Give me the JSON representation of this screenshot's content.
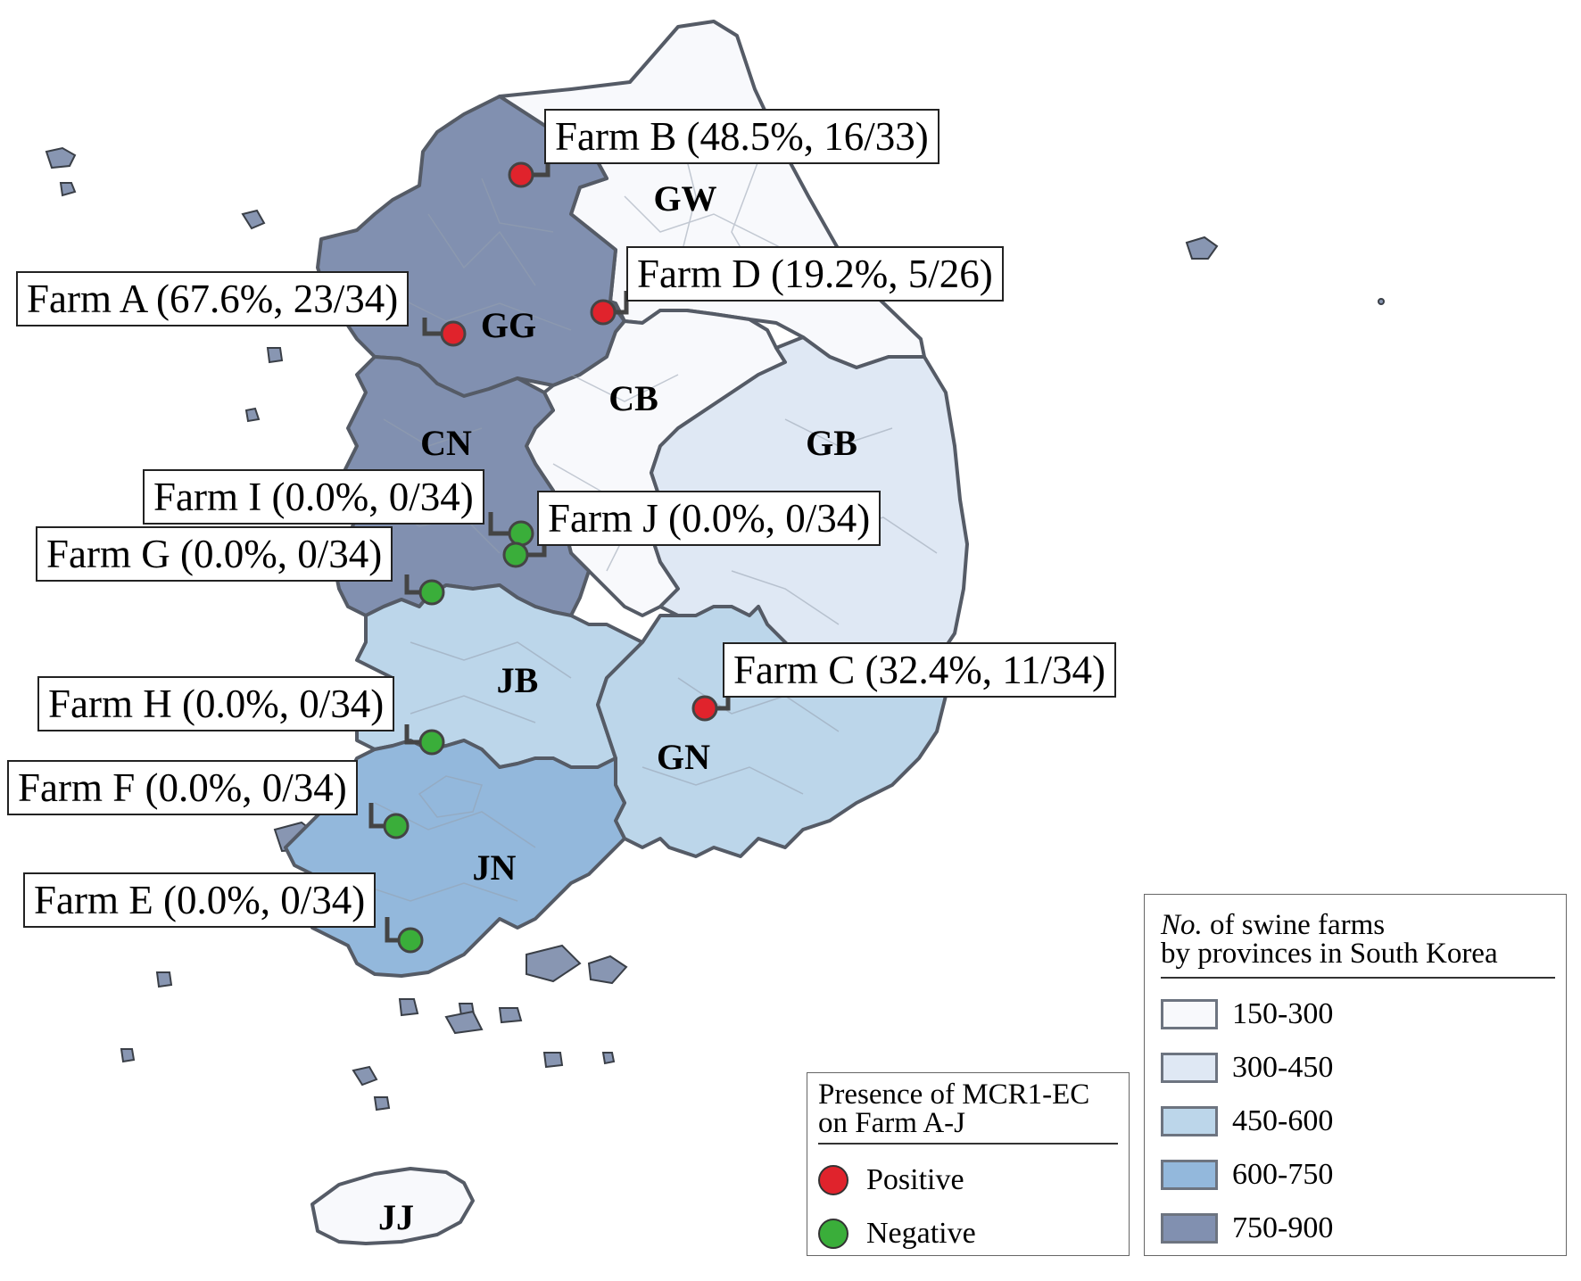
{
  "provinces": [
    {
      "code": "GW",
      "class": "150-300"
    },
    {
      "code": "GG",
      "class": "750-900"
    },
    {
      "code": "CB",
      "class": "150-300"
    },
    {
      "code": "CN",
      "class": "750-900"
    },
    {
      "code": "GB",
      "class": "300-450"
    },
    {
      "code": "JB",
      "class": "450-600"
    },
    {
      "code": "GN",
      "class": "450-600"
    },
    {
      "code": "JN",
      "class": "600-750"
    },
    {
      "code": "JJ",
      "class": "150-300"
    }
  ],
  "farms": [
    {
      "id": "B",
      "label": "Farm B (48.5%, 16/33)",
      "status": "positive"
    },
    {
      "id": "D",
      "label": "Farm D (19.2%, 5/26)",
      "status": "positive"
    },
    {
      "id": "A",
      "label": "Farm A (67.6%, 23/34)",
      "status": "positive"
    },
    {
      "id": "I",
      "label": "Farm I (0.0%, 0/34)",
      "status": "negative"
    },
    {
      "id": "J",
      "label": "Farm J (0.0%, 0/34)",
      "status": "negative"
    },
    {
      "id": "G",
      "label": "Farm G (0.0%, 0/34)",
      "status": "negative"
    },
    {
      "id": "C",
      "label": "Farm C (32.4%, 11/34)",
      "status": "positive"
    },
    {
      "id": "H",
      "label": "Farm H (0.0%, 0/34)",
      "status": "negative"
    },
    {
      "id": "F",
      "label": "Farm F  (0.0%, 0/34)",
      "status": "negative"
    },
    {
      "id": "E",
      "label": "Farm E (0.0%, 0/34)",
      "status": "negative"
    }
  ],
  "presence_legend": {
    "title_line1": "Presence of MCR1-EC",
    "title_line2": "on Farm A-J",
    "positive_label": "Positive",
    "negative_label": "Negative",
    "positive_color": "#e0232c",
    "negative_color": "#3aae3a"
  },
  "farms_legend": {
    "title_italic": "No.",
    "title_rest": " of swine farms",
    "title_line2": "by provinces in South Korea",
    "classes": [
      {
        "label": "150-300",
        "color": "#f8f9fc"
      },
      {
        "label": "300-450",
        "color": "#dfe8f4"
      },
      {
        "label": "450-600",
        "color": "#bcd6ea"
      },
      {
        "label": "600-750",
        "color": "#93b8dc"
      },
      {
        "label": "750-900",
        "color": "#8190b0"
      }
    ]
  }
}
